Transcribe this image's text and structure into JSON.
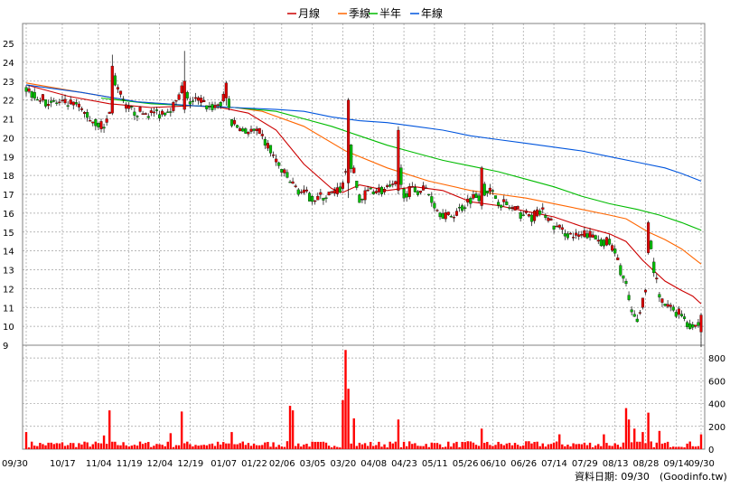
{
  "chart_data": {
    "type": "candlestick",
    "legend": {
      "placement": "top-center",
      "items": [
        {
          "name": "月線",
          "color": "#cc0000"
        },
        {
          "name": "季線",
          "color": "#ff6600"
        },
        {
          "name": "半年",
          "color": "#00bb00"
        },
        {
          "name": "年線",
          "color": "#0055dd"
        }
      ]
    },
    "colors": {
      "up": "#dd0000",
      "down": "#00bb00",
      "flat": "#000000",
      "volume": "#ff0000",
      "grid": "#a0a0a0"
    },
    "grid": true,
    "price_axis": {
      "min": 9,
      "max": 25,
      "ticks": [
        9,
        10,
        11,
        12,
        13,
        14,
        15,
        16,
        17,
        18,
        19,
        20,
        21,
        22,
        23,
        24,
        25
      ],
      "side": "left"
    },
    "volume_axis": {
      "min": 0,
      "max": 880,
      "ticks": [
        0,
        200,
        400,
        600,
        800
      ],
      "side": "right"
    },
    "x_axis": {
      "count": 244,
      "labels": [
        {
          "i": 0,
          "text": "09/30"
        },
        {
          "i": 13,
          "text": "10/17"
        },
        {
          "i": 26,
          "text": "11/04"
        },
        {
          "i": 37,
          "text": "11/19"
        },
        {
          "i": 48,
          "text": "12/04"
        },
        {
          "i": 59,
          "text": "12/19"
        },
        {
          "i": 71,
          "text": "01/07"
        },
        {
          "i": 82,
          "text": "01/22"
        },
        {
          "i": 92,
          "text": "02/06"
        },
        {
          "i": 103,
          "text": "03/05"
        },
        {
          "i": 114,
          "text": "03/20"
        },
        {
          "i": 125,
          "text": "04/08"
        },
        {
          "i": 136,
          "text": "04/23"
        },
        {
          "i": 147,
          "text": "05/11"
        },
        {
          "i": 158,
          "text": "05/26"
        },
        {
          "i": 168,
          "text": "06/10"
        },
        {
          "i": 179,
          "text": "06/26"
        },
        {
          "i": 190,
          "text": "07/14"
        },
        {
          "i": 201,
          "text": "07/29"
        },
        {
          "i": 212,
          "text": "08/13"
        },
        {
          "i": 223,
          "text": "08/28"
        },
        {
          "i": 234,
          "text": "09/14"
        },
        {
          "i": 243,
          "text": "09/30"
        }
      ]
    },
    "price_path": [
      [
        0,
        22.6
      ],
      [
        6,
        22.0
      ],
      [
        12,
        21.8
      ],
      [
        18,
        21.7
      ],
      [
        24,
        20.9
      ],
      [
        28,
        20.6
      ],
      [
        30,
        21.3
      ],
      [
        31,
        23.3
      ],
      [
        33,
        22.6
      ],
      [
        36,
        21.5
      ],
      [
        42,
        21.3
      ],
      [
        48,
        21.3
      ],
      [
        54,
        21.8
      ],
      [
        56,
        22.6
      ],
      [
        58,
        21.9
      ],
      [
        62,
        22.0
      ],
      [
        66,
        21.6
      ],
      [
        70,
        21.8
      ],
      [
        72,
        22.3
      ],
      [
        74,
        20.8
      ],
      [
        78,
        20.4
      ],
      [
        84,
        20.2
      ],
      [
        88,
        19.3
      ],
      [
        92,
        18.2
      ],
      [
        96,
        17.5
      ],
      [
        100,
        17.0
      ],
      [
        104,
        16.8
      ],
      [
        108,
        16.9
      ],
      [
        112,
        17.1
      ],
      [
        114,
        17.5
      ],
      [
        116,
        19.0
      ],
      [
        118,
        18.1
      ],
      [
        120,
        16.6
      ],
      [
        124,
        17.3
      ],
      [
        128,
        17.2
      ],
      [
        132,
        17.3
      ],
      [
        134,
        17.6
      ],
      [
        136,
        17.1
      ],
      [
        140,
        17.2
      ],
      [
        144,
        17.3
      ],
      [
        148,
        16.2
      ],
      [
        152,
        15.8
      ],
      [
        156,
        16.2
      ],
      [
        160,
        16.8
      ],
      [
        164,
        17.0
      ],
      [
        166,
        17.3
      ],
      [
        170,
        16.7
      ],
      [
        174,
        16.3
      ],
      [
        178,
        16.0
      ],
      [
        182,
        15.8
      ],
      [
        186,
        16.1
      ],
      [
        190,
        15.3
      ],
      [
        194,
        15.0
      ],
      [
        198,
        14.7
      ],
      [
        202,
        14.9
      ],
      [
        206,
        14.6
      ],
      [
        210,
        14.4
      ],
      [
        212,
        13.8
      ],
      [
        214,
        13.0
      ],
      [
        216,
        12.1
      ],
      [
        218,
        10.5
      ],
      [
        220,
        10.3
      ],
      [
        222,
        11.4
      ],
      [
        224,
        13.0
      ],
      [
        225,
        13.9
      ],
      [
        227,
        12.3
      ],
      [
        228,
        11.4
      ],
      [
        230,
        11.1
      ],
      [
        234,
        10.8
      ],
      [
        236,
        10.7
      ],
      [
        238,
        10.2
      ],
      [
        240,
        10.0
      ],
      [
        243,
        10.1
      ]
    ],
    "moving_averages": {
      "月線": [
        [
          0,
          22.8
        ],
        [
          15,
          22.2
        ],
        [
          30,
          21.8
        ],
        [
          45,
          21.6
        ],
        [
          60,
          21.7
        ],
        [
          70,
          21.6
        ],
        [
          80,
          21.3
        ],
        [
          90,
          20.4
        ],
        [
          100,
          18.6
        ],
        [
          110,
          17.3
        ],
        [
          114,
          17.1
        ],
        [
          120,
          17.5
        ],
        [
          130,
          17.2
        ],
        [
          140,
          17.4
        ],
        [
          150,
          17.2
        ],
        [
          160,
          16.6
        ],
        [
          170,
          16.4
        ],
        [
          180,
          16.1
        ],
        [
          190,
          15.8
        ],
        [
          200,
          15.3
        ],
        [
          210,
          14.9
        ],
        [
          216,
          14.5
        ],
        [
          222,
          13.5
        ],
        [
          230,
          12.4
        ],
        [
          236,
          11.9
        ],
        [
          240,
          11.6
        ],
        [
          243,
          11.2
        ]
      ],
      "季線": [
        [
          0,
          22.9
        ],
        [
          20,
          22.4
        ],
        [
          40,
          21.9
        ],
        [
          60,
          21.7
        ],
        [
          75,
          21.6
        ],
        [
          85,
          21.4
        ],
        [
          100,
          20.6
        ],
        [
          115,
          19.3
        ],
        [
          130,
          18.4
        ],
        [
          145,
          17.7
        ],
        [
          160,
          17.2
        ],
        [
          170,
          17.0
        ],
        [
          180,
          16.8
        ],
        [
          190,
          16.5
        ],
        [
          200,
          16.2
        ],
        [
          210,
          15.9
        ],
        [
          216,
          15.7
        ],
        [
          224,
          15.0
        ],
        [
          230,
          14.6
        ],
        [
          236,
          14.1
        ],
        [
          243,
          13.3
        ]
      ],
      "半年": [
        [
          27,
          22.1
        ],
        [
          45,
          21.8
        ],
        [
          60,
          21.7
        ],
        [
          75,
          21.6
        ],
        [
          90,
          21.4
        ],
        [
          100,
          21.0
        ],
        [
          110,
          20.6
        ],
        [
          120,
          20.1
        ],
        [
          130,
          19.6
        ],
        [
          140,
          19.2
        ],
        [
          150,
          18.8
        ],
        [
          160,
          18.5
        ],
        [
          170,
          18.2
        ],
        [
          180,
          17.8
        ],
        [
          190,
          17.4
        ],
        [
          200,
          16.9
        ],
        [
          210,
          16.5
        ],
        [
          220,
          16.2
        ],
        [
          228,
          15.9
        ],
        [
          236,
          15.5
        ],
        [
          243,
          15.1
        ]
      ],
      "年線": [
        [
          0,
          22.8
        ],
        [
          20,
          22.4
        ],
        [
          40,
          21.9
        ],
        [
          60,
          21.7
        ],
        [
          75,
          21.6
        ],
        [
          90,
          21.5
        ],
        [
          100,
          21.4
        ],
        [
          110,
          21.1
        ],
        [
          120,
          20.9
        ],
        [
          130,
          20.8
        ],
        [
          140,
          20.6
        ],
        [
          150,
          20.4
        ],
        [
          160,
          20.1
        ],
        [
          170,
          19.9
        ],
        [
          180,
          19.7
        ],
        [
          190,
          19.5
        ],
        [
          200,
          19.3
        ],
        [
          210,
          19.0
        ],
        [
          220,
          18.7
        ],
        [
          230,
          18.4
        ],
        [
          236,
          18.1
        ],
        [
          243,
          17.7
        ]
      ]
    },
    "notable_candles": [
      {
        "i": 31,
        "open": 21.3,
        "close": 23.8,
        "high": 24.4,
        "low": 21.2
      },
      {
        "i": 57,
        "open": 21.5,
        "close": 23.0,
        "high": 24.6,
        "low": 21.3
      },
      {
        "i": 72,
        "open": 22.1,
        "close": 22.9,
        "high": 23.0,
        "low": 21.7
      },
      {
        "i": 116,
        "open": 17.6,
        "close": 22.0,
        "high": 22.1,
        "low": 16.8
      },
      {
        "i": 134,
        "open": 17.2,
        "close": 20.4,
        "high": 20.6,
        "low": 17.0
      },
      {
        "i": 164,
        "open": 16.4,
        "close": 18.4,
        "high": 18.5,
        "low": 16.2
      },
      {
        "i": 224,
        "open": 13.9,
        "close": 15.5,
        "high": 15.6,
        "low": 13.8
      },
      {
        "i": 243,
        "open": 9.7,
        "close": 10.6,
        "high": 10.7,
        "low": 8.9
      }
    ],
    "volume_spikes": [
      [
        0,
        150
      ],
      [
        28,
        120
      ],
      [
        30,
        340
      ],
      [
        52,
        140
      ],
      [
        56,
        330
      ],
      [
        74,
        150
      ],
      [
        95,
        380
      ],
      [
        96,
        340
      ],
      [
        114,
        430
      ],
      [
        115,
        870
      ],
      [
        116,
        530
      ],
      [
        118,
        270
      ],
      [
        134,
        260
      ],
      [
        164,
        180
      ],
      [
        192,
        130
      ],
      [
        208,
        130
      ],
      [
        216,
        360
      ],
      [
        217,
        260
      ],
      [
        219,
        180
      ],
      [
        222,
        150
      ],
      [
        224,
        320
      ],
      [
        228,
        160
      ],
      [
        243,
        130
      ]
    ]
  },
  "footer": {
    "date_label": "資料日期: 09/30",
    "source": "(Goodinfo.tw)"
  }
}
